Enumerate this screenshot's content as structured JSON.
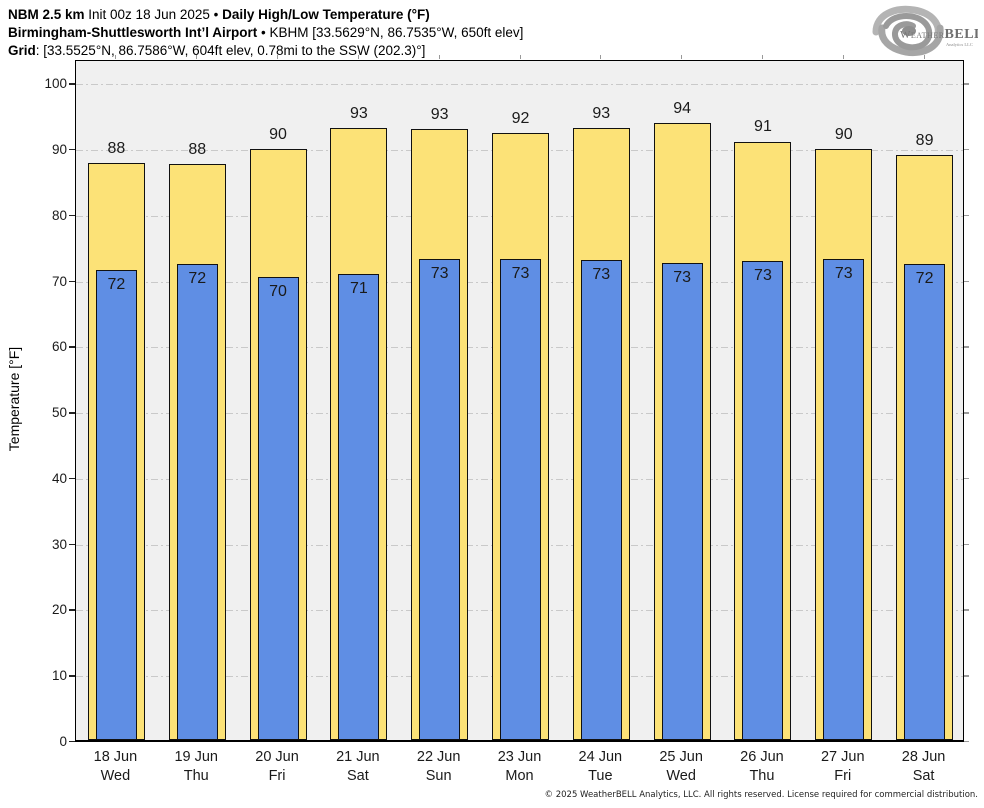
{
  "header": {
    "line1_bold1": "NBM 2.5 km",
    "line1_regular": " Init 00z 18 Jun 2025 ",
    "line1_sep": "• ",
    "line1_bold2": "Daily High/Low Temperature (°F)",
    "line2_bold": "Birmingham-Shuttlesworth Int’l Airport",
    "line2_sep": " • ",
    "line2_regular": "KBHM [33.5629°N, 86.7535°W, 650ft elev]",
    "line3_bold": "Grid",
    "line3_regular": ": [33.5525°N, 86.7586°W, 604ft elev, 0.78mi to the SSW (202.3)°]"
  },
  "logo": {
    "brand_small": "Weather",
    "brand_big": "BELL",
    "subtext": "Analytics LLC",
    "icon": "hurricane-swirl-icon"
  },
  "chart_data": {
    "type": "bar",
    "title": "Daily High/Low Temperature (°F)",
    "model": "NBM 2.5 km",
    "init": "Init 00z 18 Jun 2025",
    "station": "KBHM Birmingham-Shuttlesworth Int’l Airport",
    "ylabel": "Temperature [°F]",
    "ylim": [
      0,
      103.7
    ],
    "yticks": [
      0,
      10,
      20,
      30,
      40,
      50,
      60,
      70,
      80,
      90,
      100
    ],
    "grid": "horizontal dash-dot lines every 10°F, on",
    "legend_position": "none",
    "categories": [
      {
        "date": "18 Jun",
        "weekday": "Wed"
      },
      {
        "date": "19 Jun",
        "weekday": "Thu"
      },
      {
        "date": "20 Jun",
        "weekday": "Fri"
      },
      {
        "date": "21 Jun",
        "weekday": "Sat"
      },
      {
        "date": "22 Jun",
        "weekday": "Sun"
      },
      {
        "date": "23 Jun",
        "weekday": "Mon"
      },
      {
        "date": "24 Jun",
        "weekday": "Tue"
      },
      {
        "date": "25 Jun",
        "weekday": "Wed"
      },
      {
        "date": "26 Jun",
        "weekday": "Thu"
      },
      {
        "date": "27 Jun",
        "weekday": "Fri"
      },
      {
        "date": "28 Jun",
        "weekday": "Sat"
      }
    ],
    "series": [
      {
        "name": "Daily High",
        "color": "#FCE277",
        "labels": [
          88,
          88,
          90,
          93,
          93,
          92,
          93,
          94,
          91,
          90,
          89
        ],
        "values": [
          87.8,
          87.6,
          89.8,
          93.1,
          92.9,
          92.3,
          93.0,
          93.8,
          91.0,
          89.9,
          88.9
        ]
      },
      {
        "name": "Daily Low",
        "color": "#5F8EE4",
        "labels": [
          72,
          72,
          70,
          71,
          73,
          73,
          73,
          73,
          73,
          73,
          72
        ],
        "values": [
          71.5,
          72.4,
          70.4,
          70.9,
          73.1,
          73.2,
          73.0,
          72.6,
          72.8,
          73.2,
          72.4
        ]
      }
    ]
  },
  "colors": {
    "high_bar": "#FCE277",
    "low_bar": "#5F8EE4",
    "bar_border": "#111111",
    "plot_bg": "#F0F0F0",
    "gridline": "#C9C9C9",
    "axis": "#000000"
  },
  "footer": {
    "copyright": "© 2025 WeatherBELL Analytics, LLC. All rights reserved. License required for commercial distribution."
  }
}
